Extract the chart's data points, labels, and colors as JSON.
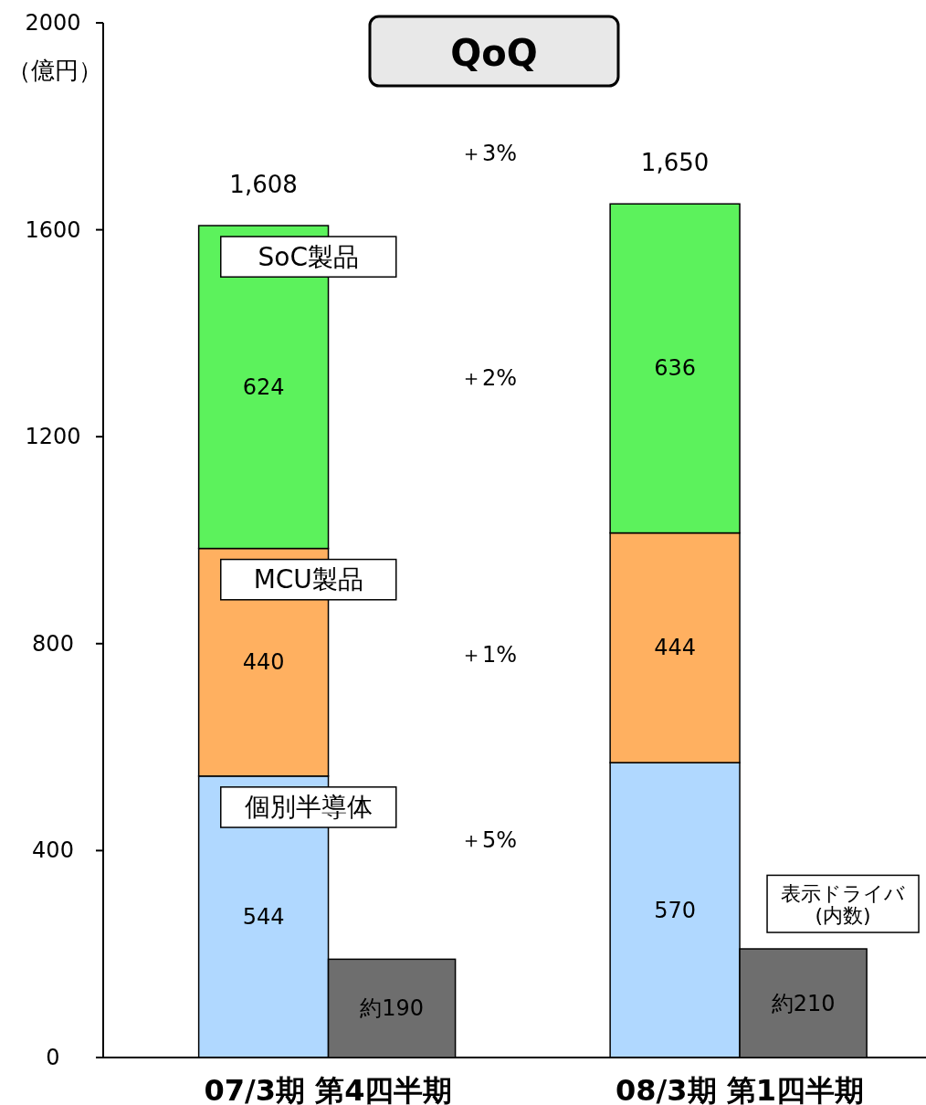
{
  "chart_data": [
    {
      "type": "bar",
      "title": "QoQ",
      "ylabel": "（億円）",
      "categories": [
        "07/3期 第4四半期",
        "08/3期 第1四半期"
      ],
      "stacked": true,
      "ylim": [
        0,
        2000
      ],
      "yticks": [
        0,
        400,
        800,
        1200,
        1600,
        2000
      ],
      "data_labels": true,
      "grid": false,
      "totals": [
        "1,608",
        "1,650"
      ],
      "series": [
        {
          "name": "個別半導体",
          "color": "#b0d8ff",
          "values": [
            544,
            570
          ]
        },
        {
          "name": "MCU製品",
          "color": "#ffb060",
          "values": [
            440,
            444
          ]
        },
        {
          "name": "SoC製品",
          "color": "#5cf25c",
          "values": [
            624,
            636
          ]
        }
      ],
      "annotations": [
        "＋3%",
        "＋2%",
        "＋1%",
        "＋5%"
      ]
    },
    {
      "type": "bar",
      "categories": [
        null,
        null
      ],
      "ylim": [
        0,
        2000
      ],
      "tick_labels": false,
      "series": [
        {
          "name": "表示ドライバ\n(内数)",
          "color": "#6e6e6e",
          "values": [
            190,
            210
          ],
          "value_labels": [
            "約190",
            "約210"
          ]
        }
      ]
    }
  ]
}
